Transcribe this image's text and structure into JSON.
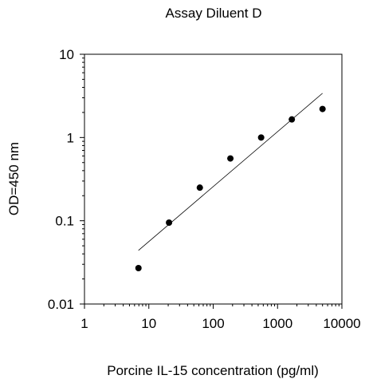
{
  "chart_data": {
    "type": "scatter",
    "title": "Assay Diluent D",
    "xlabel": "Porcine IL-15 concentration (pg/ml)",
    "ylabel": "OD=450 nm",
    "x_scale": "log",
    "y_scale": "log",
    "xlim": [
      1,
      10000
    ],
    "ylim": [
      0.01,
      10
    ],
    "x_ticks": [
      1,
      10,
      100,
      1000,
      10000
    ],
    "x_tick_labels": [
      "1",
      "10",
      "100",
      "1000",
      "10000"
    ],
    "y_ticks": [
      0.01,
      0.1,
      1,
      10
    ],
    "y_tick_labels": [
      "0.01",
      "0.1",
      "1",
      "10"
    ],
    "grid": false,
    "legend": "none",
    "series": [
      {
        "points": [
          {
            "x": 6.9,
            "y": 0.027
          },
          {
            "x": 20.6,
            "y": 0.095
          },
          {
            "x": 62,
            "y": 0.25
          },
          {
            "x": 185,
            "y": 0.56
          },
          {
            "x": 556,
            "y": 1.0
          },
          {
            "x": 1667,
            "y": 1.65
          },
          {
            "x": 5000,
            "y": 2.2
          }
        ],
        "color": "#000000"
      }
    ],
    "fit_line": {
      "x": [
        6.9,
        5000
      ],
      "y": [
        0.044,
        3.4
      ],
      "color": "#000000"
    }
  }
}
